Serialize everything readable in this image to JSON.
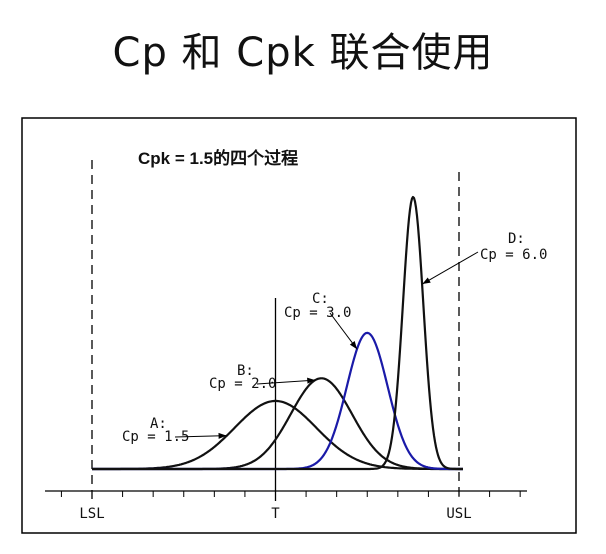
{
  "slide": {
    "title": "Cp 和 Cpk 联合使用"
  },
  "chart_data": {
    "type": "line",
    "title": "Cpk = 1.5的四个过程",
    "xlabel": "",
    "ylabel": "",
    "grid": false,
    "x_ticks": [
      "LSL",
      "T",
      "USL"
    ],
    "spec": {
      "LSL": -1,
      "T": 0,
      "USL": 1
    },
    "series": [
      {
        "name": "A:",
        "cp_label": "Cp = 1.5",
        "cp": 1.5,
        "cpk": 1.5,
        "mean": 0.0,
        "sigma": 0.2222,
        "color": "#111111"
      },
      {
        "name": "B:",
        "cp_label": "Cp = 2.0",
        "cp": 2.0,
        "cpk": 1.5,
        "mean": 0.25,
        "sigma": 0.1667,
        "color": "#111111"
      },
      {
        "name": "C:",
        "cp_label": "Cp = 3.0",
        "cp": 3.0,
        "cpk": 1.5,
        "mean": 0.5,
        "sigma": 0.1111,
        "color": "#1a1aa8"
      },
      {
        "name": "D:",
        "cp_label": "Cp = 6.0",
        "cp": 6.0,
        "cpk": 1.5,
        "mean": 0.75,
        "sigma": 0.0556,
        "color": "#111111"
      }
    ]
  }
}
